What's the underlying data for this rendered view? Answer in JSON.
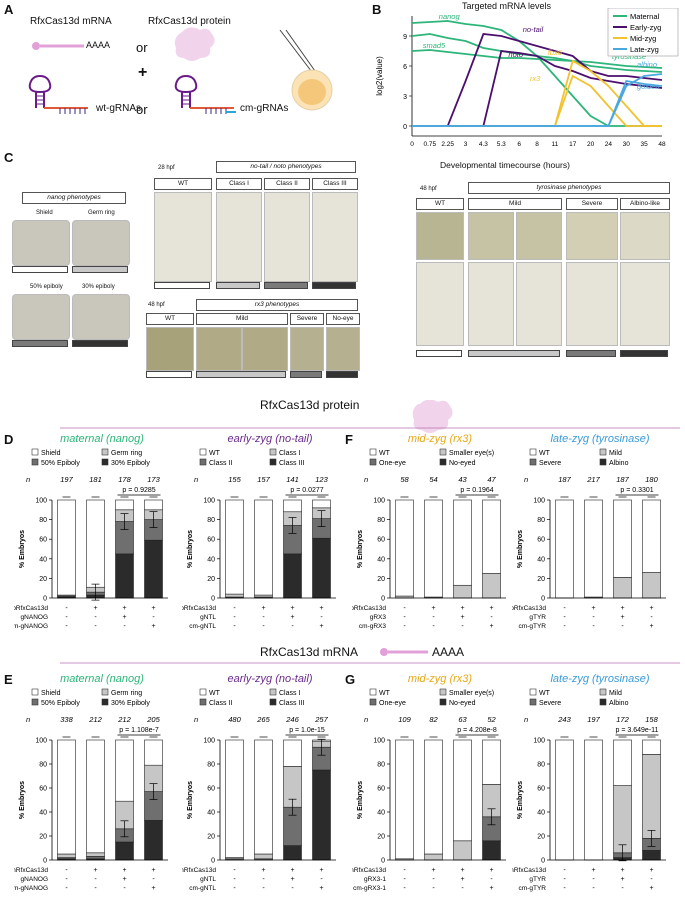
{
  "panelA": {
    "letter": "A",
    "mrna_label": "RfxCas13d mRNA",
    "protein_label": "RfxCas13d protein",
    "polyA": "AAAA",
    "or1": "or",
    "or2": "or",
    "plus": "+",
    "wt_guides": "wt-gRNAs",
    "cm_guides": "cm-gRNAs"
  },
  "panelB": {
    "letter": "B",
    "title": "Targeted mRNA levels",
    "ylabel": "log2(value)",
    "xlabel": "Developmental timecourse (hours)",
    "gene_labels": [
      "nanog",
      "smad5",
      "no-tail",
      "noto",
      "rx3",
      "fbx6",
      "tyrosinase",
      "albino",
      "golden"
    ],
    "legend": [
      {
        "name": "Maternal",
        "color": "#2db57a"
      },
      {
        "name": "Early-zyg",
        "color": "#4b0f6e"
      },
      {
        "name": "Mid-zyg",
        "color": "#f2c230"
      },
      {
        "name": "Late-zyg",
        "color": "#4aa8e0"
      }
    ]
  },
  "panelC": {
    "letter": "C",
    "nanog_title": "nanog phenotypes",
    "nanog_classes": [
      "Shield",
      "Germ ring",
      "50% epiboly",
      "30% epiboly"
    ],
    "ntl_hpf": "28 hpf",
    "ntl_title": "no-tail / noto phenotypes",
    "ntl_classes": [
      "WT",
      "Class I",
      "Class II",
      "Class III"
    ],
    "rx3_hpf": "48 hpf",
    "rx3_title": "rx3 phenotypes",
    "rx3_classes": [
      "WT",
      "Mild",
      "Severe",
      "No-eye"
    ],
    "tyr_hpf": "48 hpf",
    "tyr_title": "tyrosinase phenotypes",
    "tyr_classes": [
      "WT",
      "Mild",
      "Severe",
      "Albino-like"
    ]
  },
  "section_protein": "RfxCas13d protein",
  "section_mrna": "RfxCas13d mRNA",
  "section_polyA": "AAAA",
  "chart_data": [
    {
      "panel": "D",
      "type": "bar",
      "stacked": true,
      "title": "maternal (nanog)",
      "title_color": "#2db57a",
      "ylabel": "% Embryos",
      "ylim": [
        0,
        100
      ],
      "legend": [
        "Shield",
        "Germ ring",
        "50% Epiboly",
        "30% Epiboly"
      ],
      "n": [
        "197",
        "181",
        "178",
        "173"
      ],
      "pvalue": "p = 0.9285",
      "row_labels": [
        "pRfxCas13d",
        "gNANOG",
        "cm-gNANOG"
      ],
      "row_values": [
        [
          "-",
          "+",
          "+",
          "+"
        ],
        [
          "-",
          "-",
          "+",
          "-"
        ],
        [
          "-",
          "-",
          "-",
          "+"
        ]
      ],
      "series": [
        {
          "name": "30% Epiboly",
          "values": [
            1,
            3,
            45,
            59
          ]
        },
        {
          "name": "50% Epiboly",
          "values": [
            1,
            3,
            33,
            21
          ]
        },
        {
          "name": "Germ ring",
          "values": [
            1,
            5,
            12,
            10
          ]
        },
        {
          "name": "Shield",
          "values": [
            97,
            89,
            10,
            10
          ]
        }
      ]
    },
    {
      "panel": "D",
      "type": "bar",
      "stacked": true,
      "title": "early-zyg (no-tail)",
      "title_color": "#6b2a8a",
      "ylabel": "% Embryos",
      "ylim": [
        0,
        100
      ],
      "legend": [
        "WT",
        "Class I",
        "Class II",
        "Class III"
      ],
      "n": [
        "155",
        "157",
        "141",
        "123"
      ],
      "pvalue": "p = 0.0277",
      "row_labels": [
        "pRfxCas13d",
        "gNTL",
        "cm-gNTL"
      ],
      "row_values": [
        [
          "-",
          "+",
          "+",
          "+"
        ],
        [
          "-",
          "-",
          "+",
          "-"
        ],
        [
          "-",
          "-",
          "-",
          "+"
        ]
      ],
      "series": [
        {
          "name": "Class III",
          "values": [
            0,
            0,
            45,
            61
          ]
        },
        {
          "name": "Class II",
          "values": [
            1,
            1,
            29,
            20
          ]
        },
        {
          "name": "Class I",
          "values": [
            3,
            2,
            14,
            11
          ]
        },
        {
          "name": "WT",
          "values": [
            96,
            97,
            12,
            8
          ]
        }
      ]
    },
    {
      "panel": "F",
      "type": "bar",
      "stacked": true,
      "title": "mid-zyg (rx3)",
      "title_color": "#e6a817",
      "ylabel": "% Embryos",
      "ylim": [
        0,
        100
      ],
      "legend": [
        "WT",
        "Smaller eye(s)",
        "One-eye",
        "No-eyed"
      ],
      "n": [
        "58",
        "54",
        "43",
        "47"
      ],
      "pvalue": "p = 0.1964",
      "row_labels": [
        "pRfxCas13d",
        "gRX3",
        "cm-gRX3"
      ],
      "row_values": [
        [
          "-",
          "+",
          "+",
          "+"
        ],
        [
          "-",
          "-",
          "+",
          "-"
        ],
        [
          "-",
          "-",
          "-",
          "+"
        ]
      ],
      "series": [
        {
          "name": "No-eyed",
          "values": [
            0,
            0,
            0,
            0
          ]
        },
        {
          "name": "One-eye",
          "values": [
            0,
            0,
            0,
            0
          ]
        },
        {
          "name": "Smaller eye(s)",
          "values": [
            2,
            1,
            13,
            25
          ]
        },
        {
          "name": "WT",
          "values": [
            98,
            99,
            87,
            75
          ]
        }
      ]
    },
    {
      "panel": "F",
      "type": "bar",
      "stacked": true,
      "title": "late-zyg (tyrosinase)",
      "title_color": "#3a9ad9",
      "ylabel": "% Embryos",
      "ylim": [
        0,
        100
      ],
      "legend": [
        "WT",
        "Mild",
        "Severe",
        "Albino"
      ],
      "n": [
        "187",
        "217",
        "187",
        "180"
      ],
      "pvalue": "p = 0.3301",
      "row_labels": [
        "pRfxCas13d",
        "gTYR",
        "cm-gTYR"
      ],
      "row_values": [
        [
          "-",
          "+",
          "+",
          "+"
        ],
        [
          "-",
          "-",
          "+",
          "-"
        ],
        [
          "-",
          "-",
          "-",
          "+"
        ]
      ],
      "series": [
        {
          "name": "Albino",
          "values": [
            0,
            0,
            0,
            0
          ]
        },
        {
          "name": "Severe",
          "values": [
            0,
            0,
            0,
            0
          ]
        },
        {
          "name": "Mild",
          "values": [
            0,
            1,
            21,
            26
          ]
        },
        {
          "name": "WT",
          "values": [
            100,
            99,
            79,
            74
          ]
        }
      ]
    },
    {
      "panel": "E",
      "type": "bar",
      "stacked": true,
      "title": "maternal (nanog)",
      "title_color": "#2db57a",
      "ylabel": "% Embryos",
      "ylim": [
        0,
        100
      ],
      "legend": [
        "Shield",
        "Germ ring",
        "50% Epiboly",
        "30% Epiboly"
      ],
      "n": [
        "338",
        "212",
        "212",
        "205"
      ],
      "pvalue": "p = 1.108e-7",
      "row_labels": [
        "mRfxCas13d",
        "gNANOG",
        "cm-gNANOG"
      ],
      "row_values": [
        [
          "-",
          "+",
          "+",
          "+"
        ],
        [
          "-",
          "-",
          "+",
          "-"
        ],
        [
          "-",
          "-",
          "-",
          "+"
        ]
      ],
      "series": [
        {
          "name": "30% Epiboly",
          "values": [
            1,
            1,
            15,
            33
          ]
        },
        {
          "name": "50% Epiboly",
          "values": [
            1,
            2,
            11,
            24
          ]
        },
        {
          "name": "Germ ring",
          "values": [
            3,
            3,
            23,
            22
          ]
        },
        {
          "name": "Shield",
          "values": [
            95,
            94,
            51,
            21
          ]
        }
      ]
    },
    {
      "panel": "E",
      "type": "bar",
      "stacked": true,
      "title": "early-zyg (no-tail)",
      "title_color": "#6b2a8a",
      "ylabel": "% Embryos",
      "ylim": [
        0,
        100
      ],
      "legend": [
        "WT",
        "Class I",
        "Class II",
        "Class III"
      ],
      "n": [
        "480",
        "265",
        "246",
        "257"
      ],
      "pvalue": "p = 1.0e-15",
      "row_labels": [
        "mRfxCas13d",
        "gNTL",
        "cm-gNTL"
      ],
      "row_values": [
        [
          "-",
          "+",
          "+",
          "+"
        ],
        [
          "-",
          "-",
          "+",
          "-"
        ],
        [
          "-",
          "-",
          "-",
          "+"
        ]
      ],
      "series": [
        {
          "name": "Class III",
          "values": [
            0,
            0,
            12,
            75
          ]
        },
        {
          "name": "Class II",
          "values": [
            1,
            1,
            32,
            19
          ]
        },
        {
          "name": "Class I",
          "values": [
            1,
            4,
            34,
            5
          ]
        },
        {
          "name": "WT",
          "values": [
            98,
            95,
            22,
            1
          ]
        }
      ]
    },
    {
      "panel": "G",
      "type": "bar",
      "stacked": true,
      "title": "mid-zyg (rx3)",
      "title_color": "#e6a817",
      "ylabel": "% Embryos",
      "ylim": [
        0,
        100
      ],
      "legend": [
        "WT",
        "Smaller eye(s)",
        "One-eye",
        "No-eyed"
      ],
      "n": [
        "109",
        "82",
        "63",
        "52"
      ],
      "pvalue": "p = 4.208e-8",
      "row_labels": [
        "mRfxCas13d",
        "gRX3-1",
        "cm-gRX3-1"
      ],
      "row_values": [
        [
          "-",
          "+",
          "+",
          "+"
        ],
        [
          "-",
          "-",
          "+",
          "-"
        ],
        [
          "-",
          "-",
          "-",
          "+"
        ]
      ],
      "series": [
        {
          "name": "No-eyed",
          "values": [
            0,
            0,
            0,
            16
          ]
        },
        {
          "name": "One-eye",
          "values": [
            0,
            0,
            0,
            20
          ]
        },
        {
          "name": "Smaller eye(s)",
          "values": [
            1,
            5,
            16,
            27
          ]
        },
        {
          "name": "WT",
          "values": [
            99,
            95,
            84,
            37
          ]
        }
      ]
    },
    {
      "panel": "G",
      "type": "bar",
      "stacked": true,
      "title": "late-zyg (tyrosinase)",
      "title_color": "#3a9ad9",
      "ylabel": "% Embryos",
      "ylim": [
        0,
        100
      ],
      "legend": [
        "WT",
        "Mild",
        "Severe",
        "Albino"
      ],
      "n": [
        "243",
        "197",
        "172",
        "158"
      ],
      "pvalue": "p = 3.649e-11",
      "row_labels": [
        "mRfxCas13d",
        "gTYR",
        "cm-gTYR"
      ],
      "row_values": [
        [
          "-",
          "+",
          "+",
          "+"
        ],
        [
          "-",
          "-",
          "+",
          "-"
        ],
        [
          "-",
          "-",
          "-",
          "+"
        ]
      ],
      "series": [
        {
          "name": "Albino",
          "values": [
            0,
            0,
            2,
            8
          ]
        },
        {
          "name": "Severe",
          "values": [
            0,
            0,
            4,
            10
          ]
        },
        {
          "name": "Mild",
          "values": [
            0,
            0,
            56,
            70
          ]
        },
        {
          "name": "WT",
          "values": [
            100,
            100,
            38,
            12
          ]
        }
      ]
    },
    {
      "panel": "B",
      "type": "line",
      "title": "Targeted mRNA levels",
      "xlabel": "Developmental timecourse (hours)",
      "ylabel": "log2(value)",
      "x": [
        "0",
        "0.75",
        "2.25",
        "3",
        "4.3",
        "5.3",
        "6",
        "8",
        "11",
        "17",
        "20",
        "24",
        "30",
        "35",
        "48"
      ],
      "ylim": [
        -1,
        11
      ],
      "yticks": [
        0,
        3,
        6,
        9
      ],
      "series": [
        {
          "name": "nanog",
          "group": "Maternal",
          "values": [
            10.3,
            10.4,
            10.5,
            10.2,
            10.0,
            9.6,
            8.5,
            7.0,
            5.0,
            3.0,
            1.0,
            0,
            0,
            0,
            0
          ]
        },
        {
          "name": "smad5",
          "group": "Maternal",
          "values": [
            9.0,
            9.2,
            8.8,
            8.5,
            7.8,
            7.5,
            7.2,
            7.0,
            6.8,
            6.5,
            6.0,
            5.8,
            5.6,
            5.5,
            5.4
          ]
        },
        {
          "name": "tyrosinase",
          "group": "Maternal",
          "values": [
            7.5,
            7.6,
            7.4,
            7.2,
            7.0,
            6.8,
            6.8,
            6.7,
            6.6,
            6.5,
            6.4,
            6.2,
            6.0,
            5.9,
            5.8
          ]
        },
        {
          "name": "no-tail",
          "group": "Early-zyg",
          "values": [
            0,
            0,
            0,
            4.5,
            9.2,
            9.0,
            8.5,
            8.0,
            7.5,
            7.0,
            5.5,
            5.0,
            5.0,
            4.8,
            4.6
          ]
        },
        {
          "name": "noto",
          "group": "Early-zyg",
          "values": [
            0,
            0,
            0,
            0,
            0,
            7.5,
            7.3,
            7.0,
            6.0,
            5.5,
            4.8,
            4.5,
            4.2,
            4.0,
            3.8
          ]
        },
        {
          "name": "rx3",
          "group": "Mid-zyg",
          "values": [
            0,
            0,
            0,
            0,
            0,
            0,
            0,
            0,
            0,
            5.0,
            4.0,
            2.0,
            0,
            0,
            0
          ]
        },
        {
          "name": "fbx6",
          "group": "Mid-zyg",
          "values": [
            0,
            0,
            0,
            0,
            0,
            0,
            0,
            0,
            0,
            6.5,
            5.5,
            4.0,
            2.0,
            0,
            0
          ]
        },
        {
          "name": "albino",
          "group": "Late-zyg",
          "values": [
            0,
            0,
            0,
            0,
            0,
            0,
            0,
            0,
            0,
            0,
            0,
            0,
            4.0,
            5.0,
            5.2
          ]
        },
        {
          "name": "golden",
          "group": "Late-zyg",
          "values": [
            0,
            0,
            0,
            0,
            0,
            0,
            0,
            0,
            0,
            0,
            0,
            0,
            4.5,
            4.2,
            4.0
          ]
        }
      ]
    }
  ]
}
